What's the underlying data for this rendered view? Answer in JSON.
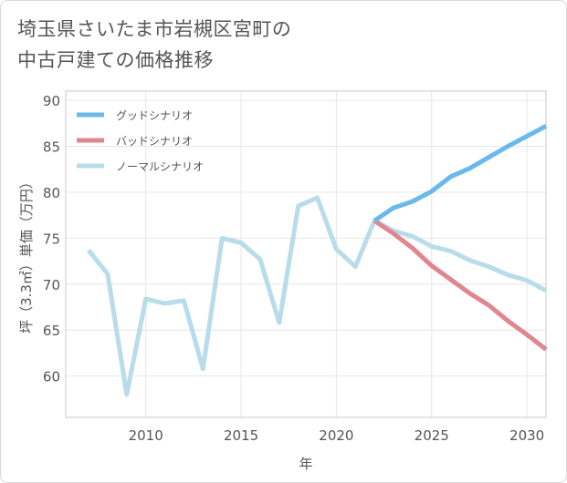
{
  "chart_data": {
    "type": "line",
    "title": "埼玉県さいたま市岩槻区宮町の\n中古戸建ての価格推移",
    "xlabel": "年",
    "ylabel": "坪（3.3㎡）単価（万円）",
    "xlim": [
      2005.8,
      2031.0
    ],
    "ylim": [
      55.5,
      91.0
    ],
    "xticks": [
      2010,
      2015,
      2020,
      2025,
      2030
    ],
    "yticks": [
      60,
      65,
      70,
      75,
      80,
      85,
      90
    ],
    "grid": true,
    "legend_position": "top-left",
    "series": [
      {
        "name": "グッドシナリオ",
        "color": "#6bb8ec",
        "x": [
          2022,
          2023,
          2024,
          2025,
          2026,
          2027,
          2028,
          2029,
          2030,
          2031
        ],
        "y": [
          76.9,
          78.3,
          79.0,
          80.1,
          81.7,
          82.6,
          83.8,
          85.0,
          86.1,
          87.2
        ]
      },
      {
        "name": "バッドシナリオ",
        "color": "#e0868e",
        "x": [
          2022,
          2023,
          2024,
          2025,
          2026,
          2027,
          2028,
          2029,
          2030,
          2031
        ],
        "y": [
          76.9,
          75.5,
          73.9,
          72.0,
          70.5,
          69.0,
          67.7,
          66.0,
          64.5,
          62.9
        ]
      },
      {
        "name": "ノーマルシナリオ",
        "color": "#b8dcea",
        "x": [
          2007,
          2008,
          2009,
          2010,
          2011,
          2012,
          2013,
          2014,
          2015,
          2016,
          2017,
          2018,
          2019,
          2020,
          2021,
          2022,
          2023,
          2024,
          2025,
          2026,
          2027,
          2028,
          2029,
          2030,
          2031
        ],
        "y": [
          73.7,
          71.1,
          58.0,
          68.4,
          67.9,
          68.2,
          60.8,
          75.0,
          74.5,
          72.7,
          65.8,
          78.5,
          79.4,
          73.8,
          71.9,
          76.9,
          75.8,
          75.2,
          74.1,
          73.6,
          72.6,
          71.9,
          71.0,
          70.4,
          69.3
        ]
      }
    ]
  }
}
